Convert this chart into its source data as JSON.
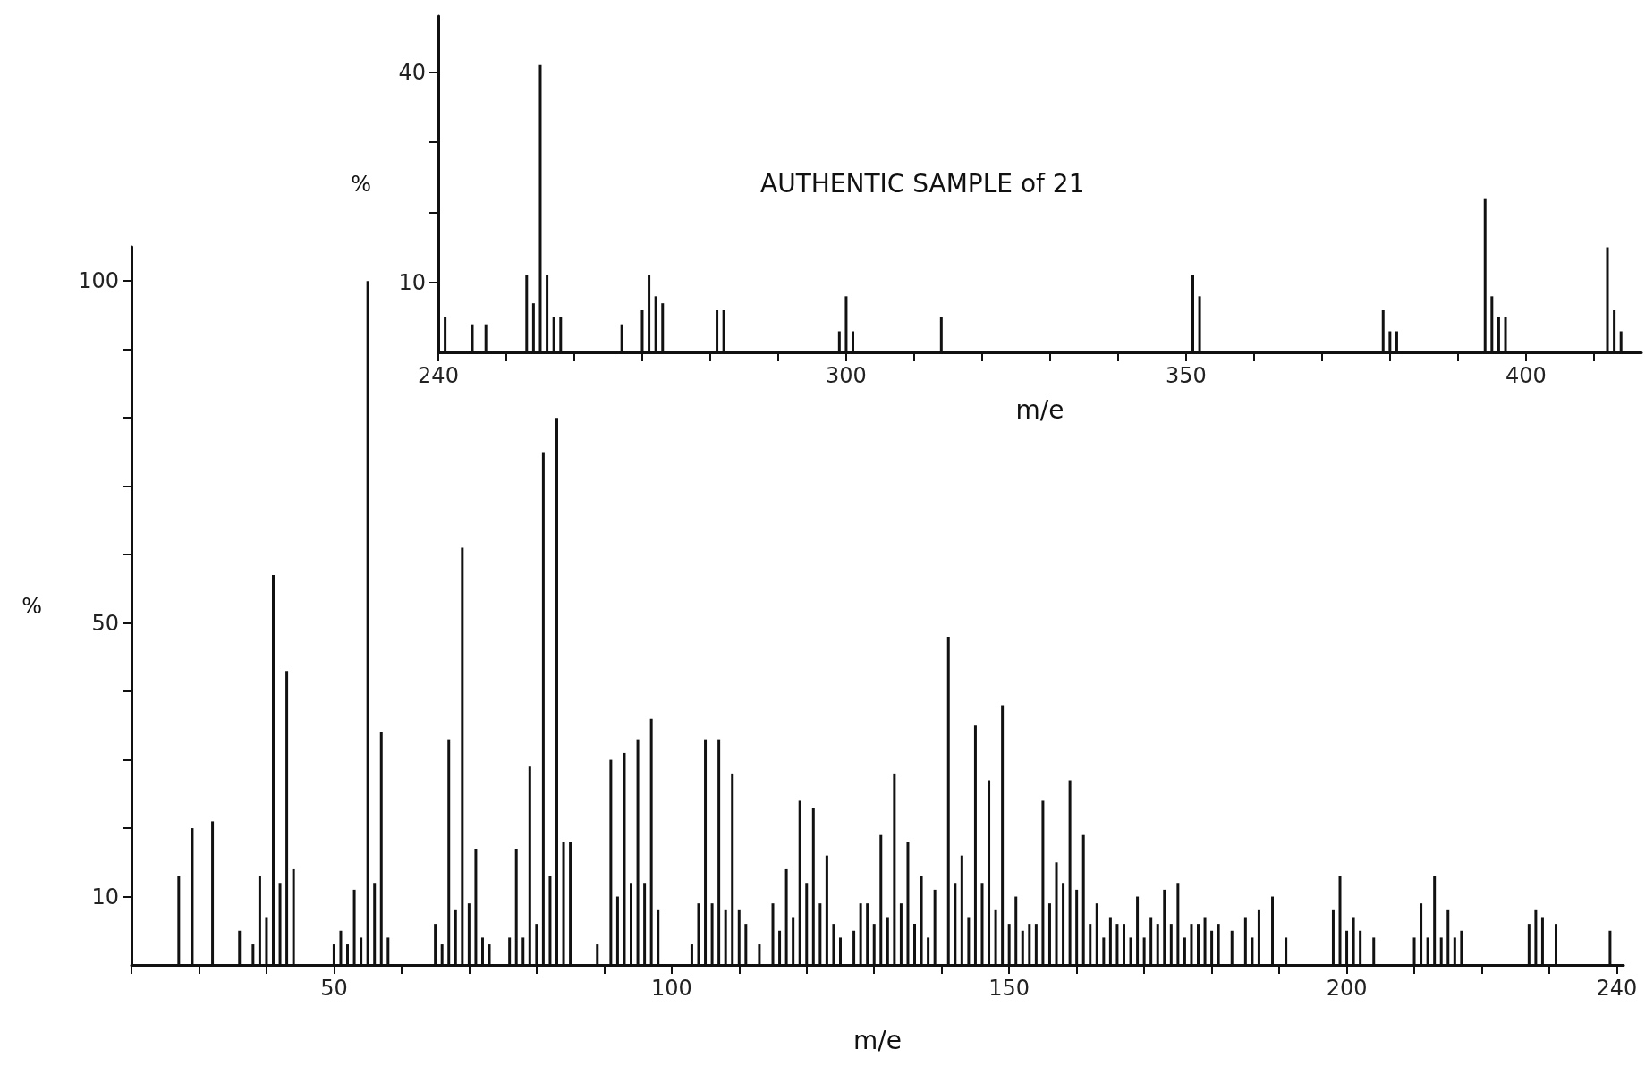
{
  "chart_data": [
    {
      "type": "bar",
      "xlabel": "m/e",
      "ylabel": "%",
      "color": "#111111",
      "xlim": [
        20,
        241
      ],
      "ylim": [
        0,
        105
      ],
      "xticks": [
        {
          "value": 20,
          "label": null
        },
        {
          "value": 30,
          "label": null
        },
        {
          "value": 40,
          "label": null
        },
        50,
        {
          "value": 60,
          "label": null
        },
        {
          "value": 70,
          "label": null
        },
        {
          "value": 80,
          "label": null
        },
        {
          "value": 90,
          "label": null
        },
        100,
        {
          "value": 110,
          "label": null
        },
        {
          "value": 120,
          "label": null
        },
        {
          "value": 130,
          "label": null
        },
        {
          "value": 140,
          "label": null
        },
        150,
        {
          "value": 160,
          "label": null
        },
        {
          "value": 170,
          "label": null
        },
        {
          "value": 180,
          "label": null
        },
        {
          "value": 190,
          "label": null
        },
        200,
        {
          "value": 210,
          "label": null
        },
        {
          "value": 220,
          "label": null
        },
        {
          "value": 230,
          "label": null
        },
        240
      ],
      "yticks": [
        10,
        {
          "value": 20,
          "label": null
        },
        {
          "value": 30,
          "label": null
        },
        {
          "value": 40,
          "label": null
        },
        50,
        {
          "value": 60,
          "label": null
        },
        {
          "value": 70,
          "label": null
        },
        {
          "value": 80,
          "label": null
        },
        {
          "value": 90,
          "label": null
        },
        100
      ],
      "x": [
        27,
        29,
        32,
        36,
        38,
        39,
        40,
        41,
        42,
        43,
        44,
        50,
        51,
        52,
        53,
        54,
        55,
        56,
        57,
        58,
        65,
        66,
        67,
        68,
        69,
        70,
        71,
        72,
        73,
        76,
        77,
        78,
        79,
        80,
        81,
        82,
        83,
        84,
        85,
        89,
        91,
        92,
        93,
        94,
        95,
        96,
        97,
        98,
        103,
        104,
        105,
        106,
        107,
        108,
        109,
        110,
        111,
        113,
        115,
        116,
        117,
        118,
        119,
        120,
        121,
        122,
        123,
        124,
        125,
        127,
        128,
        129,
        130,
        131,
        132,
        133,
        134,
        135,
        136,
        137,
        138,
        139,
        141,
        142,
        143,
        144,
        145,
        146,
        147,
        148,
        149,
        150,
        151,
        152,
        153,
        154,
        155,
        156,
        157,
        158,
        159,
        160,
        161,
        162,
        163,
        164,
        165,
        166,
        167,
        168,
        169,
        170,
        171,
        172,
        173,
        174,
        175,
        176,
        177,
        178,
        179,
        180,
        181,
        183,
        185,
        186,
        187,
        189,
        191,
        198,
        199,
        200,
        201,
        202,
        204,
        210,
        211,
        212,
        213,
        214,
        215,
        216,
        217,
        227,
        228,
        229,
        231,
        239
      ],
      "values": [
        13,
        20,
        21,
        5,
        3,
        13,
        7,
        57,
        12,
        43,
        14,
        3,
        5,
        3,
        11,
        4,
        100,
        12,
        34,
        4,
        6,
        3,
        33,
        8,
        61,
        9,
        17,
        4,
        3,
        4,
        17,
        4,
        29,
        6,
        75,
        13,
        80,
        18,
        18,
        3,
        30,
        10,
        31,
        12,
        33,
        12,
        36,
        8,
        3,
        9,
        33,
        9,
        33,
        8,
        28,
        8,
        6,
        3,
        9,
        5,
        14,
        7,
        24,
        12,
        23,
        9,
        16,
        6,
        4,
        5,
        9,
        9,
        6,
        19,
        7,
        28,
        9,
        18,
        6,
        13,
        4,
        11,
        48,
        12,
        16,
        7,
        35,
        12,
        27,
        8,
        38,
        6,
        10,
        5,
        6,
        6,
        24,
        9,
        15,
        12,
        27,
        11,
        19,
        6,
        9,
        4,
        7,
        6,
        6,
        4,
        10,
        4,
        7,
        6,
        11,
        6,
        12,
        4,
        6,
        6,
        7,
        5,
        6,
        5,
        7,
        4,
        8,
        10,
        4,
        8,
        13,
        5,
        7,
        5,
        4,
        4,
        9,
        4,
        13,
        4,
        8,
        4,
        5,
        6,
        8,
        7,
        6,
        5
      ]
    },
    {
      "type": "bar",
      "title": "AUTHENTIC SAMPLE of 21",
      "xlabel": "m/e",
      "ylabel": "%",
      "color": "#111111",
      "xlim": [
        240,
        417
      ],
      "ylim": [
        0,
        48
      ],
      "xticks": [
        240,
        {
          "value": 250,
          "label": null
        },
        {
          "value": 260,
          "label": null
        },
        {
          "value": 270,
          "label": null
        },
        {
          "value": 280,
          "label": null
        },
        {
          "value": 290,
          "label": null
        },
        300,
        {
          "value": 310,
          "label": null
        },
        {
          "value": 320,
          "label": null
        },
        {
          "value": 330,
          "label": null
        },
        {
          "value": 340,
          "label": null
        },
        350,
        {
          "value": 360,
          "label": null
        },
        {
          "value": 370,
          "label": null
        },
        {
          "value": 380,
          "label": null
        },
        {
          "value": 390,
          "label": null
        },
        400,
        {
          "value": 410,
          "label": null
        }
      ],
      "yticks": [
        10,
        {
          "value": 20,
          "label": null
        },
        {
          "value": 30,
          "label": null
        },
        40
      ],
      "x": [
        241,
        245,
        247,
        253,
        254,
        255,
        256,
        257,
        258,
        267,
        270,
        271,
        272,
        273,
        281,
        282,
        299,
        300,
        301,
        314,
        351,
        352,
        379,
        380,
        381,
        394,
        395,
        396,
        397,
        412,
        413,
        414
      ],
      "values": [
        5,
        4,
        4,
        11,
        7,
        41,
        11,
        5,
        5,
        4,
        6,
        11,
        8,
        7,
        6,
        6,
        3,
        8,
        3,
        5,
        11,
        8,
        6,
        3,
        3,
        22,
        8,
        5,
        5,
        15,
        6,
        3
      ]
    }
  ]
}
